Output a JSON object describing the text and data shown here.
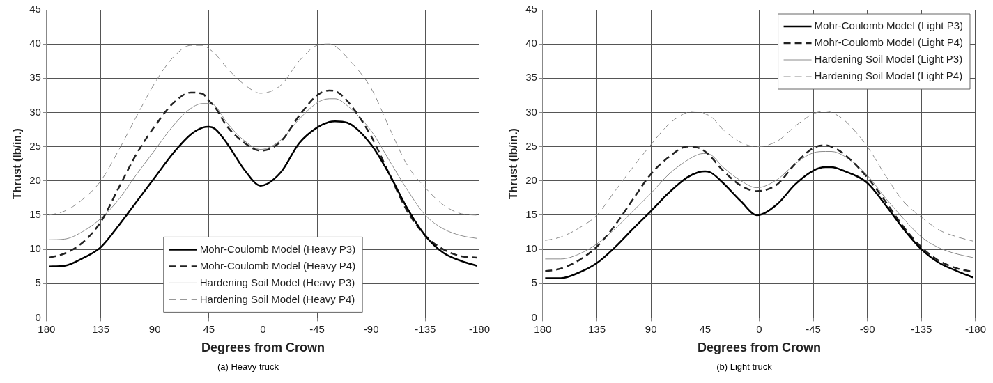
{
  "chart_data": [
    {
      "type": "line",
      "xlabel": "Degrees from Crown",
      "ylabel": "Thrust (lb/in.)",
      "annotations": [
        "(a) Heavy truck"
      ],
      "xlim": [
        180,
        -180
      ],
      "xticks": [
        180,
        135,
        90,
        45,
        0,
        -45,
        -90,
        -135,
        -180
      ],
      "ylim": [
        0,
        45
      ],
      "yticks": [
        0,
        5,
        10,
        15,
        20,
        25,
        30,
        35,
        40,
        45
      ],
      "grid": true,
      "legend": "bottom",
      "marker": "none",
      "x": [
        178,
        165,
        150,
        135,
        120,
        105,
        90,
        75,
        60,
        50,
        45,
        40,
        30,
        15,
        2,
        -15,
        -30,
        -45,
        -55,
        -60,
        -70,
        -90,
        -105,
        -120,
        -135,
        -150,
        -165,
        -178
      ],
      "series": [
        {
          "name": "Mohr-Coulomb Model (Heavy P3)",
          "color": "#000000",
          "line_style": "solid",
          "values": [
            7.5,
            7.6,
            8.7,
            10.3,
            13.5,
            17,
            20.5,
            24,
            26.8,
            27.8,
            27.9,
            27.6,
            25.5,
            21.5,
            19.3,
            21.3,
            25.5,
            27.8,
            28.6,
            28.7,
            28.5,
            25.3,
            21,
            16,
            12,
            9.5,
            8.3,
            7.6
          ]
        },
        {
          "name": "Mohr-Coulomb Model (Heavy P4)",
          "color": "#222222",
          "line_style": "dashed",
          "values": [
            8.8,
            9.4,
            11,
            14,
            19,
            24,
            28,
            31.3,
            32.9,
            32.7,
            31.7,
            30.8,
            28,
            25.5,
            24.4,
            25.8,
            29.5,
            32.5,
            33.2,
            33.1,
            31.7,
            26.5,
            21,
            15.6,
            12,
            10,
            9,
            8.8
          ]
        },
        {
          "name": "Hardening Soil Model (Heavy P3)",
          "color": "#8c8c8c",
          "line_style": "solid",
          "values": [
            11.4,
            11.5,
            12.6,
            14.5,
            17.3,
            21,
            24.5,
            28,
            30.6,
            31.3,
            31.3,
            31,
            28.5,
            25.8,
            24.6,
            26,
            29,
            31.4,
            32,
            32,
            31,
            27.3,
            23,
            18.7,
            15,
            13,
            12,
            11.6
          ]
        },
        {
          "name": "Hardening Soil Model (Heavy P4)",
          "color": "#8c8c8c",
          "line_style": "dashed",
          "values": [
            15,
            15.6,
            17.3,
            20,
            24.5,
            29.5,
            34.3,
            38,
            39.8,
            39.8,
            39.3,
            38.6,
            36.5,
            34,
            32.8,
            34,
            37.5,
            39.8,
            40,
            39.7,
            38,
            33.5,
            27.8,
            22.3,
            19,
            16.5,
            15.2,
            15
          ]
        }
      ]
    },
    {
      "type": "line",
      "xlabel": "Degrees from Crown",
      "ylabel": "Thrust (lb/in.)",
      "annotations": [
        "(b) Light truck"
      ],
      "xlim": [
        180,
        -180
      ],
      "xticks": [
        180,
        135,
        90,
        45,
        0,
        -45,
        -90,
        -135,
        -180
      ],
      "ylim": [
        0,
        45
      ],
      "yticks": [
        0,
        5,
        10,
        15,
        20,
        25,
        30,
        35,
        40,
        45
      ],
      "grid": true,
      "legend": "top right",
      "marker": "none",
      "x": [
        178,
        165,
        150,
        135,
        120,
        105,
        90,
        75,
        60,
        50,
        45,
        40,
        30,
        15,
        2,
        -15,
        -30,
        -45,
        -55,
        -60,
        -70,
        -90,
        -105,
        -120,
        -135,
        -150,
        -165,
        -178
      ],
      "series": [
        {
          "name": "Mohr-Coulomb Model (Light P3)",
          "color": "#000000",
          "line_style": "solid",
          "values": [
            5.8,
            5.8,
            6.6,
            8,
            10.3,
            13,
            15.6,
            18.3,
            20.5,
            21.3,
            21.4,
            21.2,
            19.7,
            17,
            15,
            16.6,
            19.5,
            21.5,
            22,
            22,
            21.5,
            19.7,
            16.5,
            13,
            10,
            8,
            6.8,
            5.9
          ]
        },
        {
          "name": "Mohr-Coulomb Model (Light P4)",
          "color": "#222222",
          "line_style": "dashed",
          "values": [
            6.8,
            7.2,
            8.4,
            10.4,
            13.5,
            17.3,
            21,
            23.5,
            25,
            24.8,
            24.3,
            23.5,
            21.5,
            19.3,
            18.5,
            19.5,
            22.5,
            24.8,
            25.2,
            25,
            24,
            20.5,
            17,
            13.3,
            10.3,
            8.3,
            7.2,
            6.7
          ]
        },
        {
          "name": "Hardening Soil Model (Light P3)",
          "color": "#8c8c8c",
          "line_style": "solid",
          "values": [
            8.6,
            8.6,
            9.3,
            10.8,
            13,
            15.6,
            18.2,
            21,
            23,
            23.9,
            24,
            23.8,
            22,
            20,
            19,
            20.2,
            22.5,
            24.1,
            24.3,
            24.3,
            23.7,
            20.8,
            17.5,
            14.5,
            11.8,
            10.2,
            9.3,
            8.8
          ]
        },
        {
          "name": "Hardening Soil Model (Light P4)",
          "color": "#8c8c8c",
          "line_style": "dashed",
          "values": [
            11.3,
            11.8,
            13.1,
            15,
            18.5,
            22,
            25.3,
            28.3,
            30,
            30.2,
            29.8,
            29.4,
            27.5,
            25.6,
            25,
            25.8,
            28,
            29.8,
            30.2,
            30,
            29,
            25,
            20.8,
            17,
            14.7,
            12.8,
            11.8,
            11.2
          ]
        }
      ]
    }
  ]
}
